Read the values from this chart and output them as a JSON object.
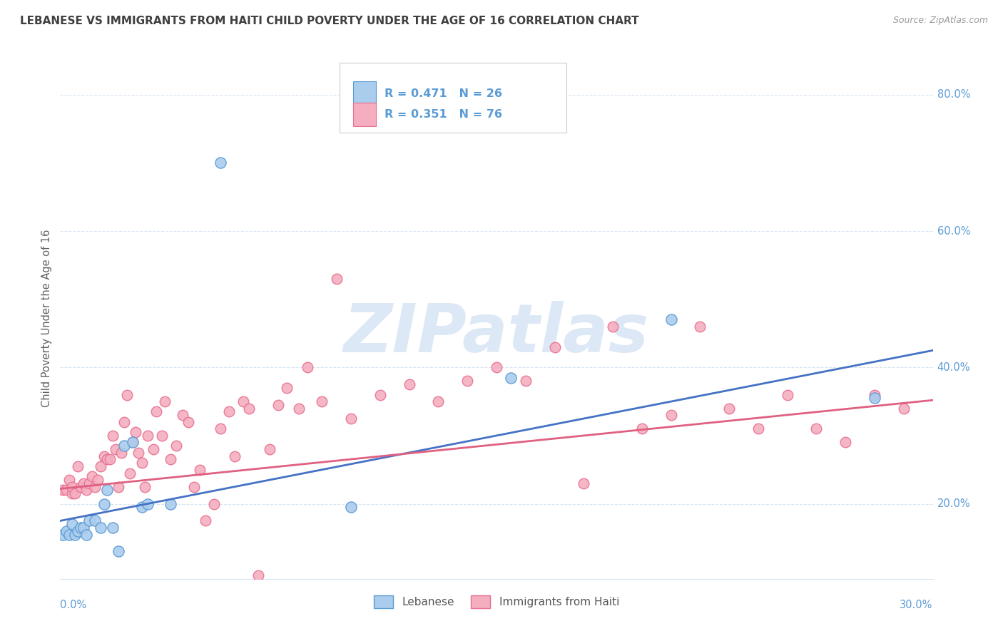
{
  "title": "LEBANESE VS IMMIGRANTS FROM HAITI CHILD POVERTY UNDER THE AGE OF 16 CORRELATION CHART",
  "source": "Source: ZipAtlas.com",
  "ylabel": "Child Poverty Under the Age of 16",
  "x_label_bottom_left": "0.0%",
  "x_label_bottom_right": "30.0%",
  "y_ticks": [
    0.2,
    0.4,
    0.6,
    0.8
  ],
  "y_tick_labels": [
    "20.0%",
    "40.0%",
    "60.0%",
    "80.0%"
  ],
  "xlim": [
    0.0,
    0.3
  ],
  "ylim": [
    0.09,
    0.855
  ],
  "legend_blue_text": "R = 0.471   N = 26",
  "legend_pink_text": "R = 0.351   N = 76",
  "legend_label_blue": "Lebanese",
  "legend_label_pink": "Immigrants from Haiti",
  "blue_color": "#aacced",
  "pink_color": "#f4aec0",
  "blue_edge_color": "#5b9bd5",
  "pink_edge_color": "#e87090",
  "blue_line_color": "#4472c4",
  "pink_line_color": "#e06080",
  "watermark": "ZIPatlas",
  "watermark_color": "#dce8f5",
  "background_color": "#ffffff",
  "grid_color": "#d8e4f0",
  "title_color": "#404040",
  "axis_label_color": "#5b9bd5",
  "ylabel_color": "#606060",
  "blue_line_y0": 0.175,
  "blue_line_y1": 0.425,
  "pink_line_y0": 0.222,
  "pink_line_y1": 0.352,
  "blue_scatter_x": [
    0.001,
    0.002,
    0.003,
    0.004,
    0.005,
    0.006,
    0.007,
    0.008,
    0.009,
    0.01,
    0.012,
    0.014,
    0.015,
    0.016,
    0.018,
    0.02,
    0.022,
    0.025,
    0.028,
    0.03,
    0.038,
    0.055,
    0.1,
    0.155,
    0.21,
    0.28
  ],
  "blue_scatter_y": [
    0.155,
    0.16,
    0.155,
    0.17,
    0.155,
    0.16,
    0.165,
    0.165,
    0.155,
    0.175,
    0.175,
    0.165,
    0.2,
    0.22,
    0.165,
    0.13,
    0.285,
    0.29,
    0.195,
    0.2,
    0.2,
    0.7,
    0.195,
    0.385,
    0.47,
    0.355
  ],
  "pink_scatter_x": [
    0.001,
    0.002,
    0.003,
    0.004,
    0.004,
    0.005,
    0.006,
    0.007,
    0.008,
    0.009,
    0.01,
    0.011,
    0.012,
    0.013,
    0.014,
    0.015,
    0.016,
    0.017,
    0.018,
    0.019,
    0.02,
    0.021,
    0.022,
    0.023,
    0.024,
    0.025,
    0.026,
    0.027,
    0.028,
    0.029,
    0.03,
    0.032,
    0.033,
    0.035,
    0.036,
    0.038,
    0.04,
    0.042,
    0.044,
    0.046,
    0.048,
    0.05,
    0.053,
    0.055,
    0.058,
    0.06,
    0.063,
    0.065,
    0.068,
    0.072,
    0.075,
    0.078,
    0.082,
    0.085,
    0.09,
    0.095,
    0.1,
    0.11,
    0.12,
    0.13,
    0.14,
    0.15,
    0.16,
    0.17,
    0.18,
    0.19,
    0.2,
    0.21,
    0.22,
    0.23,
    0.24,
    0.25,
    0.26,
    0.27,
    0.28,
    0.29
  ],
  "pink_scatter_y": [
    0.22,
    0.22,
    0.235,
    0.215,
    0.225,
    0.215,
    0.255,
    0.225,
    0.23,
    0.22,
    0.23,
    0.24,
    0.225,
    0.235,
    0.255,
    0.27,
    0.265,
    0.265,
    0.3,
    0.28,
    0.225,
    0.275,
    0.32,
    0.36,
    0.245,
    0.29,
    0.305,
    0.275,
    0.26,
    0.225,
    0.3,
    0.28,
    0.335,
    0.3,
    0.35,
    0.265,
    0.285,
    0.33,
    0.32,
    0.225,
    0.25,
    0.175,
    0.2,
    0.31,
    0.335,
    0.27,
    0.35,
    0.34,
    0.095,
    0.28,
    0.345,
    0.37,
    0.34,
    0.4,
    0.35,
    0.53,
    0.325,
    0.36,
    0.375,
    0.35,
    0.38,
    0.4,
    0.38,
    0.43,
    0.23,
    0.46,
    0.31,
    0.33,
    0.46,
    0.34,
    0.31,
    0.36,
    0.31,
    0.29,
    0.36,
    0.34
  ]
}
